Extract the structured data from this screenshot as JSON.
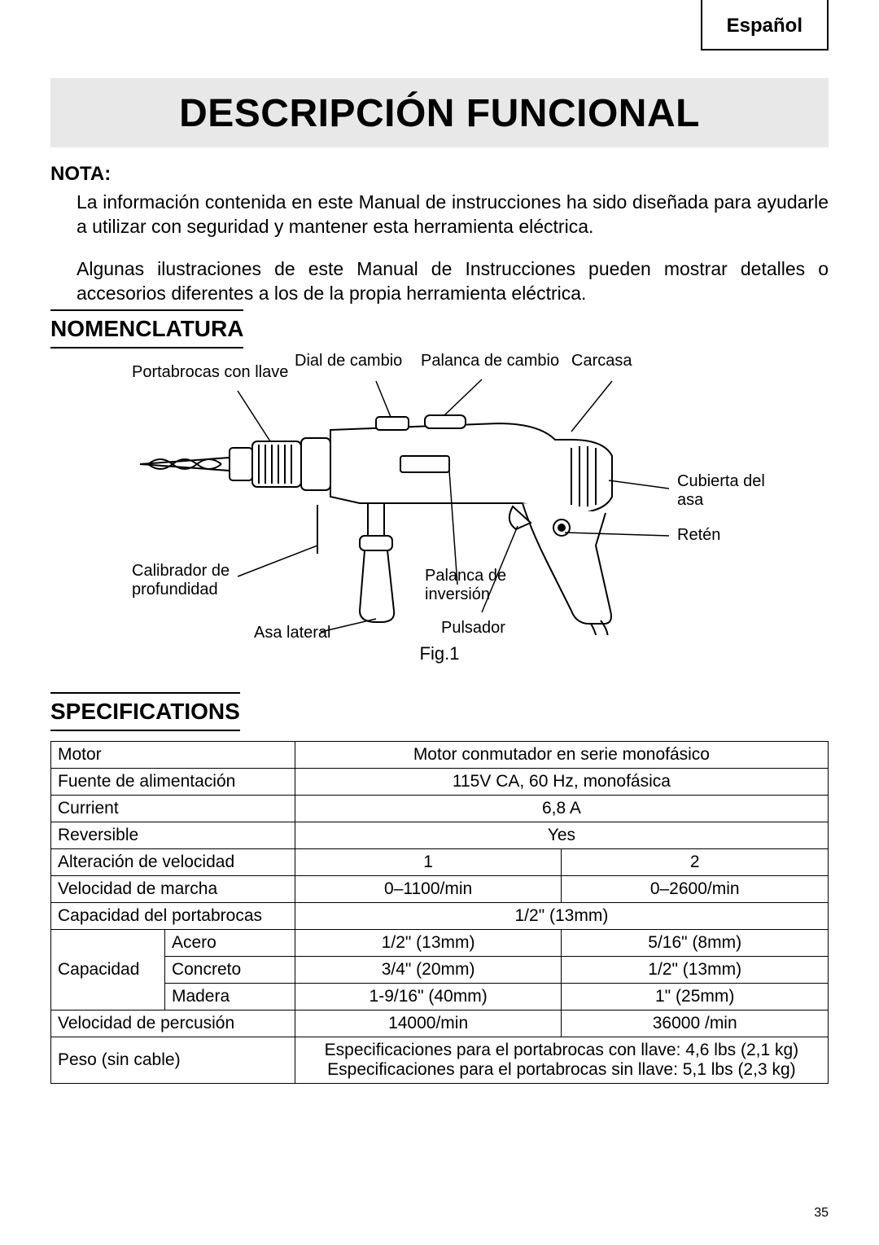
{
  "header": {
    "language": "Español"
  },
  "title": "DESCRIPCIÓN FUNCIONAL",
  "nota": {
    "label": "NOTA:",
    "p1": "La información contenida en este Manual de instrucciones ha sido diseñada para ayudarle a utilizar con seguridad y mantener esta herramienta eléctrica.",
    "p2": "Algunas ilustraciones de este Manual de Instrucciones pueden mostrar detalles o accesorios diferentes a los de la propia herramienta eléctrica."
  },
  "sections": {
    "nomenclatura": "NOMENCLATURA",
    "specifications": "SPECIFICATIONS"
  },
  "diagram": {
    "fig_label": "Fig.1",
    "labels": {
      "portabrocas": "Portabrocas con llave",
      "dial_cambio": "Dial de cambio",
      "palanca_cambio": "Palanca de cambio",
      "carcasa": "Carcasa",
      "cubierta_asa": "Cubierta del\nasa",
      "reten": "Retén",
      "calibrador": "Calibrador de\nprofundidad",
      "palanca_inversion": "Palanca de\ninversión",
      "asa_lateral": "Asa lateral",
      "pulsador": "Pulsador"
    },
    "stroke": "#000000",
    "fill": "#ffffff"
  },
  "spec_table": {
    "border_color": "#000000",
    "font_size": 21,
    "rows": [
      {
        "label": "Motor",
        "value": "Motor conmutador en serie monofásico",
        "span": 2
      },
      {
        "label": "Fuente de alimentación",
        "value": "115V CA, 60 Hz, monofásica",
        "span": 2
      },
      {
        "label": "Currient",
        "value": "6,8 A",
        "span": 2
      },
      {
        "label": "Reversible",
        "value": "Yes",
        "span": 2
      },
      {
        "label": "Alteración de velocidad",
        "v1": "1",
        "v2": "2"
      },
      {
        "label": "Velocidad de marcha",
        "v1": "0–1100/min",
        "v2": "0–2600/min"
      },
      {
        "label": "Capacidad del portabrocas",
        "value": "1/2\" (13mm)",
        "span": 2
      }
    ],
    "capacity_group": {
      "group_label": "Capacidad",
      "rows": [
        {
          "sub": "Acero",
          "v1": "1/2\" (13mm)",
          "v2": "5/16\" (8mm)"
        },
        {
          "sub": "Concreto",
          "v1": "3/4\" (20mm)",
          "v2": "1/2\" (13mm)"
        },
        {
          "sub": "Madera",
          "v1": "1-9/16\" (40mm)",
          "v2": "1\" (25mm)"
        }
      ]
    },
    "tail_rows": [
      {
        "label": "Velocidad de percusión",
        "v1": "14000/min",
        "v2": "36000 /min"
      },
      {
        "label": "Peso (sin cable)",
        "value": "Especificaciones para el portabrocas con llave: 4,6 lbs (2,1 kg)\nEspecificaciones para el portabrocas sin llave: 5,1 lbs (2,3 kg)",
        "span": 2
      }
    ]
  },
  "page_number": "35"
}
